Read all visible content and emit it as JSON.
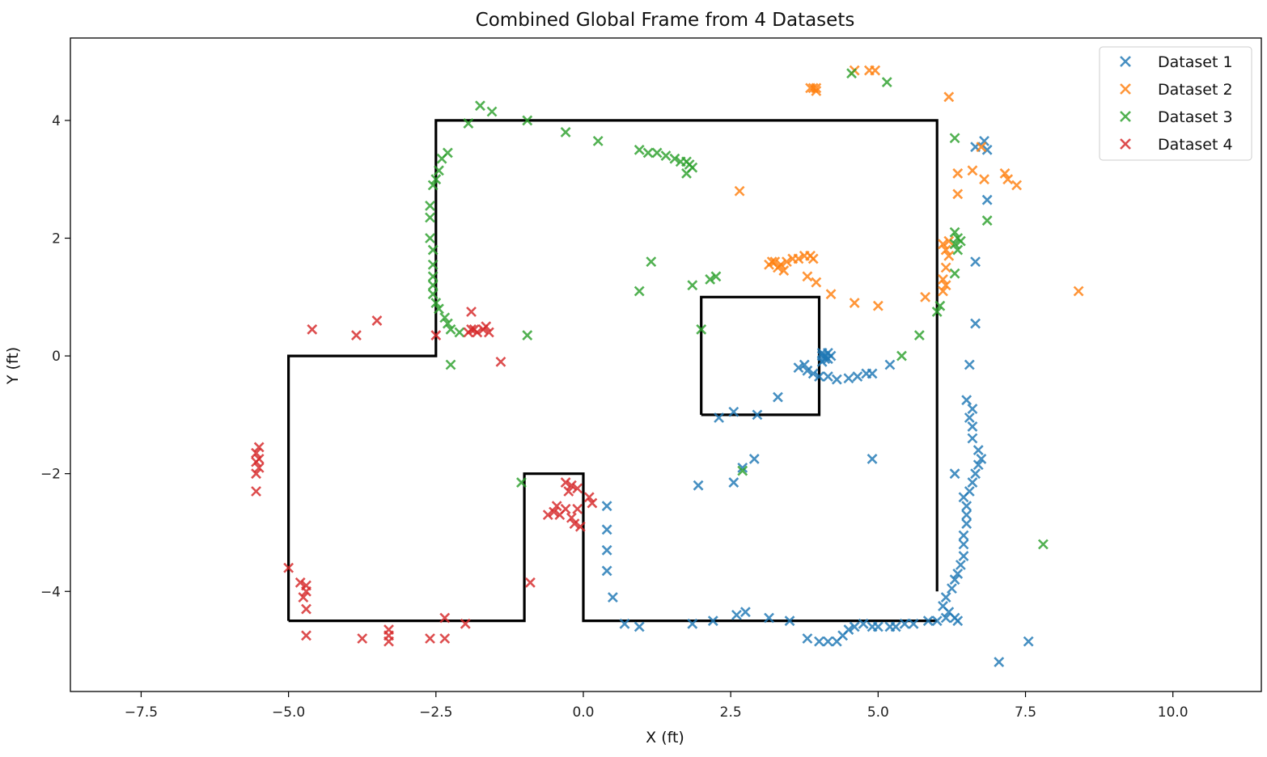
{
  "chart_data": {
    "type": "scatter",
    "title": "Combined Global Frame from 4 Datasets",
    "xlabel": "X (ft)",
    "ylabel": "Y (ft)",
    "xlim": [
      -8.7,
      11.5
    ],
    "ylim": [
      -5.7,
      5.4
    ],
    "xticks": [
      -7.5,
      -5.0,
      -2.5,
      0.0,
      2.5,
      5.0,
      7.5,
      10.0
    ],
    "xtick_labels": [
      "−7.5",
      "−5.0",
      "−2.5",
      "0.0",
      "2.5",
      "5.0",
      "7.5",
      "10.0"
    ],
    "yticks": [
      -4,
      -2,
      0,
      2,
      4
    ],
    "ytick_labels": [
      "−4",
      "−2",
      "0",
      "2",
      "4"
    ],
    "grid": false,
    "legend_position": "top-right",
    "marker": "x",
    "walls": [
      [
        [
          -5,
          -4.5
        ],
        [
          -5,
          0
        ],
        [
          -2.5,
          0
        ],
        [
          -2.5,
          4
        ],
        [
          6,
          4
        ],
        [
          6,
          -4
        ]
      ],
      [
        [
          -5,
          -4.5
        ],
        [
          -1,
          -4.5
        ],
        [
          -1,
          -2
        ],
        [
          0,
          -2
        ],
        [
          0,
          -4.5
        ],
        [
          6,
          -4.5
        ]
      ],
      [
        [
          2,
          -1
        ],
        [
          2,
          1
        ],
        [
          4,
          1
        ],
        [
          4,
          -1
        ],
        [
          2,
          -1
        ]
      ]
    ],
    "series": [
      {
        "name": "Dataset 1",
        "color": "#1f77b4",
        "points": [
          [
            0.4,
            -2.55
          ],
          [
            0.4,
            -2.95
          ],
          [
            0.4,
            -3.3
          ],
          [
            0.4,
            -3.65
          ],
          [
            0.5,
            -4.1
          ],
          [
            0.7,
            -4.55
          ],
          [
            0.95,
            -4.6
          ],
          [
            1.85,
            -4.55
          ],
          [
            2.2,
            -4.5
          ],
          [
            2.6,
            -4.4
          ],
          [
            2.75,
            -4.35
          ],
          [
            3.15,
            -4.45
          ],
          [
            3.5,
            -4.5
          ],
          [
            3.8,
            -4.8
          ],
          [
            4.0,
            -4.85
          ],
          [
            4.15,
            -4.85
          ],
          [
            4.3,
            -4.85
          ],
          [
            4.4,
            -4.75
          ],
          [
            4.5,
            -4.65
          ],
          [
            4.6,
            -4.6
          ],
          [
            4.75,
            -4.55
          ],
          [
            4.9,
            -4.6
          ],
          [
            5.0,
            -4.6
          ],
          [
            5.2,
            -4.6
          ],
          [
            5.3,
            -4.6
          ],
          [
            5.45,
            -4.55
          ],
          [
            5.6,
            -4.55
          ],
          [
            5.85,
            -4.5
          ],
          [
            6.0,
            -4.5
          ],
          [
            6.15,
            -4.45
          ],
          [
            6.3,
            -4.45
          ],
          [
            6.35,
            -4.5
          ],
          [
            6.2,
            -4.35
          ],
          [
            6.1,
            -4.25
          ],
          [
            6.15,
            -4.1
          ],
          [
            6.25,
            -3.95
          ],
          [
            6.3,
            -3.8
          ],
          [
            6.35,
            -3.7
          ],
          [
            6.4,
            -3.55
          ],
          [
            6.45,
            -3.4
          ],
          [
            6.45,
            -3.2
          ],
          [
            6.45,
            -3.05
          ],
          [
            6.5,
            -2.85
          ],
          [
            6.5,
            -2.7
          ],
          [
            6.5,
            -2.55
          ],
          [
            6.45,
            -2.4
          ],
          [
            6.55,
            -2.3
          ],
          [
            6.6,
            -2.15
          ],
          [
            6.65,
            -2.0
          ],
          [
            6.7,
            -1.85
          ],
          [
            6.75,
            -1.75
          ],
          [
            6.7,
            -1.6
          ],
          [
            6.6,
            -1.4
          ],
          [
            6.6,
            -1.2
          ],
          [
            6.55,
            -1.05
          ],
          [
            6.6,
            -0.9
          ],
          [
            6.5,
            -0.75
          ],
          [
            6.3,
            -2.0
          ],
          [
            6.55,
            -0.15
          ],
          [
            6.65,
            0.55
          ],
          [
            6.65,
            1.6
          ],
          [
            6.65,
            3.55
          ],
          [
            6.8,
            3.65
          ],
          [
            6.85,
            3.5
          ],
          [
            6.85,
            2.65
          ],
          [
            7.05,
            -5.2
          ],
          [
            7.55,
            -4.85
          ],
          [
            4.05,
            0.0
          ],
          [
            4.05,
            0.05
          ],
          [
            4.1,
            -0.05
          ],
          [
            4.15,
            0.05
          ],
          [
            4.2,
            0.0
          ],
          [
            4.15,
            -0.05
          ],
          [
            4.05,
            -0.1
          ],
          [
            4.1,
            0.0
          ],
          [
            3.75,
            -0.15
          ],
          [
            3.65,
            -0.2
          ],
          [
            3.8,
            -0.25
          ],
          [
            3.9,
            -0.3
          ],
          [
            4.0,
            -0.35
          ],
          [
            4.15,
            -0.35
          ],
          [
            4.3,
            -0.4
          ],
          [
            4.5,
            -0.38
          ],
          [
            4.65,
            -0.35
          ],
          [
            4.8,
            -0.3
          ],
          [
            4.9,
            -0.3
          ],
          [
            5.2,
            -0.15
          ],
          [
            4.9,
            -1.75
          ],
          [
            3.3,
            -0.7
          ],
          [
            2.95,
            -1.0
          ],
          [
            2.55,
            -0.95
          ],
          [
            2.3,
            -1.05
          ],
          [
            2.9,
            -1.75
          ],
          [
            2.7,
            -1.9
          ],
          [
            2.55,
            -2.15
          ],
          [
            1.95,
            -2.2
          ]
        ]
      },
      {
        "name": "Dataset 2",
        "color": "#ff7f0e",
        "points": [
          [
            4.6,
            4.85
          ],
          [
            4.85,
            4.85
          ],
          [
            4.95,
            4.85
          ],
          [
            3.9,
            4.55
          ],
          [
            3.95,
            4.5
          ],
          [
            3.85,
            4.55
          ],
          [
            3.95,
            4.55
          ],
          [
            6.2,
            4.4
          ],
          [
            6.75,
            3.55
          ],
          [
            6.35,
            3.1
          ],
          [
            6.6,
            3.15
          ],
          [
            6.8,
            3.0
          ],
          [
            7.15,
            3.1
          ],
          [
            7.2,
            3.0
          ],
          [
            7.35,
            2.9
          ],
          [
            2.65,
            2.8
          ],
          [
            6.35,
            2.75
          ],
          [
            6.1,
            1.9
          ],
          [
            6.15,
            1.8
          ],
          [
            6.2,
            1.7
          ],
          [
            6.15,
            1.5
          ],
          [
            6.1,
            1.3
          ],
          [
            6.1,
            1.1
          ],
          [
            6.15,
            1.2
          ],
          [
            6.2,
            1.95
          ],
          [
            5.8,
            1.0
          ],
          [
            8.4,
            1.1
          ],
          [
            3.15,
            1.55
          ],
          [
            3.25,
            1.6
          ],
          [
            3.35,
            1.55
          ],
          [
            3.45,
            1.6
          ],
          [
            3.55,
            1.65
          ],
          [
            3.65,
            1.65
          ],
          [
            3.75,
            1.7
          ],
          [
            3.85,
            1.7
          ],
          [
            3.9,
            1.65
          ],
          [
            3.4,
            1.45
          ],
          [
            3.3,
            1.5
          ],
          [
            3.2,
            1.6
          ],
          [
            3.8,
            1.35
          ],
          [
            3.95,
            1.25
          ],
          [
            4.2,
            1.05
          ],
          [
            4.6,
            0.9
          ],
          [
            5.0,
            0.85
          ]
        ]
      },
      {
        "name": "Dataset 3",
        "color": "#2ca02c",
        "points": [
          [
            -1.75,
            4.25
          ],
          [
            -1.55,
            4.15
          ],
          [
            -0.95,
            4.0
          ],
          [
            -1.95,
            3.95
          ],
          [
            -0.3,
            3.8
          ],
          [
            0.25,
            3.65
          ],
          [
            0.95,
            3.5
          ],
          [
            1.1,
            3.45
          ],
          [
            1.25,
            3.45
          ],
          [
            1.4,
            3.4
          ],
          [
            1.55,
            3.35
          ],
          [
            1.65,
            3.3
          ],
          [
            1.75,
            3.3
          ],
          [
            1.8,
            3.25
          ],
          [
            1.85,
            3.2
          ],
          [
            1.75,
            3.1
          ],
          [
            -2.3,
            3.45
          ],
          [
            -2.4,
            3.35
          ],
          [
            -2.45,
            3.15
          ],
          [
            -2.5,
            3.0
          ],
          [
            -2.55,
            2.9
          ],
          [
            -2.6,
            2.55
          ],
          [
            -2.6,
            2.35
          ],
          [
            -2.6,
            2.0
          ],
          [
            -2.55,
            1.8
          ],
          [
            -2.55,
            1.55
          ],
          [
            -2.55,
            1.35
          ],
          [
            -2.55,
            1.2
          ],
          [
            -2.55,
            1.05
          ],
          [
            -2.5,
            0.9
          ],
          [
            -2.45,
            0.8
          ],
          [
            -2.35,
            0.65
          ],
          [
            -2.3,
            0.55
          ],
          [
            -2.25,
            0.45
          ],
          [
            -2.1,
            0.4
          ],
          [
            -2.25,
            -0.15
          ],
          [
            -0.95,
            0.35
          ],
          [
            -1.05,
            -2.15
          ],
          [
            2.0,
            0.45
          ],
          [
            1.85,
            1.2
          ],
          [
            2.15,
            1.3
          ],
          [
            2.25,
            1.35
          ],
          [
            1.15,
            1.6
          ],
          [
            0.95,
            1.1
          ],
          [
            2.7,
            -1.95
          ],
          [
            4.55,
            4.8
          ],
          [
            5.15,
            4.65
          ],
          [
            6.3,
            3.7
          ],
          [
            6.85,
            2.3
          ],
          [
            6.3,
            2.1
          ],
          [
            6.35,
            2.0
          ],
          [
            6.4,
            1.95
          ],
          [
            6.3,
            1.9
          ],
          [
            6.35,
            1.8
          ],
          [
            6.3,
            1.4
          ],
          [
            6.05,
            0.85
          ],
          [
            6.0,
            0.75
          ],
          [
            5.7,
            0.35
          ],
          [
            5.4,
            0.0
          ],
          [
            7.8,
            -3.2
          ]
        ]
      },
      {
        "name": "Dataset 4",
        "color": "#d62728",
        "points": [
          [
            -5.5,
            -1.55
          ],
          [
            -5.55,
            -1.65
          ],
          [
            -5.5,
            -1.75
          ],
          [
            -5.55,
            -1.8
          ],
          [
            -5.5,
            -1.9
          ],
          [
            -5.55,
            -2.0
          ],
          [
            -5.55,
            -2.3
          ],
          [
            -4.6,
            0.45
          ],
          [
            -3.85,
            0.35
          ],
          [
            -3.5,
            0.6
          ],
          [
            -2.5,
            0.35
          ],
          [
            -1.9,
            0.75
          ],
          [
            -1.9,
            0.45
          ],
          [
            -1.8,
            0.4
          ],
          [
            -1.7,
            0.45
          ],
          [
            -1.65,
            0.5
          ],
          [
            -1.6,
            0.4
          ],
          [
            -1.85,
            0.45
          ],
          [
            -1.95,
            0.4
          ],
          [
            -1.4,
            -0.1
          ],
          [
            -5.0,
            -3.6
          ],
          [
            -4.8,
            -3.85
          ],
          [
            -4.7,
            -3.9
          ],
          [
            -4.7,
            -4.0
          ],
          [
            -4.75,
            -4.1
          ],
          [
            -4.7,
            -4.3
          ],
          [
            -4.7,
            -4.75
          ],
          [
            -3.75,
            -4.8
          ],
          [
            -3.3,
            -4.65
          ],
          [
            -3.3,
            -4.75
          ],
          [
            -3.3,
            -4.85
          ],
          [
            -2.6,
            -4.8
          ],
          [
            -2.35,
            -4.45
          ],
          [
            -2.35,
            -4.8
          ],
          [
            -2.0,
            -4.55
          ],
          [
            -0.9,
            -3.85
          ],
          [
            -0.6,
            -2.7
          ],
          [
            -0.5,
            -2.65
          ],
          [
            -0.45,
            -2.55
          ],
          [
            -0.4,
            -2.7
          ],
          [
            -0.3,
            -2.6
          ],
          [
            -0.2,
            -2.75
          ],
          [
            -0.1,
            -2.6
          ],
          [
            -0.3,
            -2.15
          ],
          [
            -0.25,
            -2.3
          ],
          [
            -0.2,
            -2.2
          ],
          [
            -0.1,
            -2.25
          ],
          [
            0.1,
            -2.4
          ],
          [
            0.15,
            -2.5
          ],
          [
            -0.15,
            -2.85
          ],
          [
            -0.05,
            -2.9
          ]
        ]
      }
    ]
  }
}
